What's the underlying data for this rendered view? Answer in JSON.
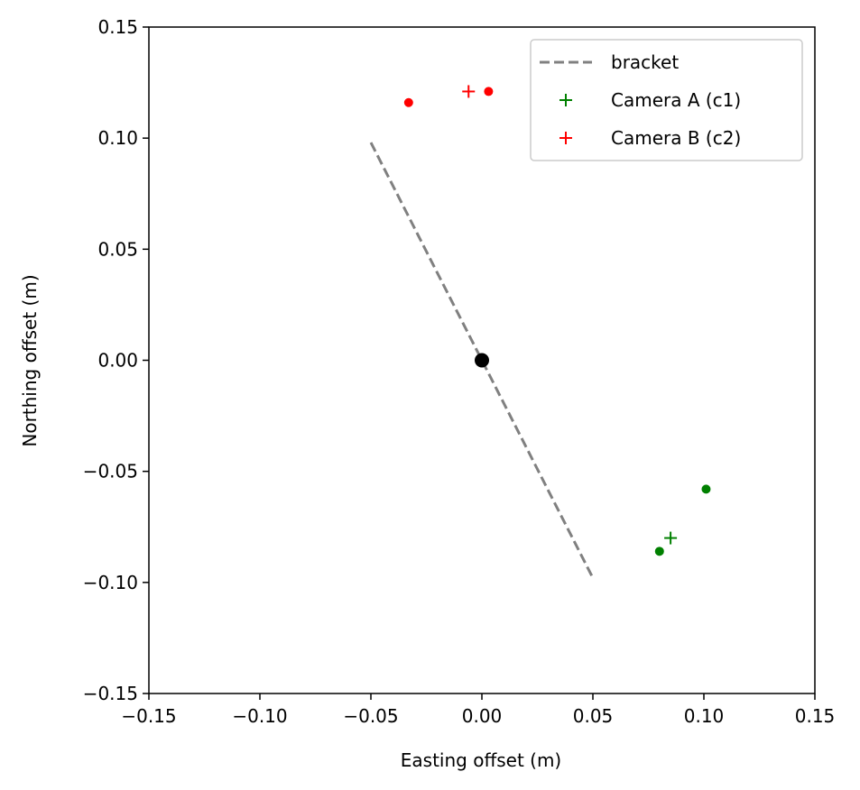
{
  "chart_data": {
    "type": "scatter",
    "xlabel": "Easting offset (m)",
    "ylabel": "Northing offset (m)",
    "xlim": [
      -0.15,
      0.15
    ],
    "ylim": [
      -0.15,
      0.15
    ],
    "xticks": [
      -0.15,
      -0.1,
      -0.05,
      0.0,
      0.05,
      0.1,
      0.15
    ],
    "yticks": [
      -0.15,
      -0.1,
      -0.05,
      0.0,
      0.05,
      0.1,
      0.15
    ],
    "xtick_labels": [
      "−0.15",
      "−0.10",
      "−0.05",
      "0.00",
      "0.05",
      "0.10",
      "0.15"
    ],
    "ytick_labels": [
      "−0.15",
      "−0.10",
      "−0.05",
      "0.00",
      "0.05",
      "0.10",
      "0.15"
    ],
    "grid": false,
    "legend_placement": "upper-right",
    "bracket": {
      "name": "bracket",
      "color": "#808080",
      "style": "dashed",
      "x": [
        -0.05,
        0.05
      ],
      "y": [
        0.098,
        -0.098
      ]
    },
    "center": {
      "x": 0.0,
      "y": 0.0,
      "color": "#000000"
    },
    "series": [
      {
        "name": "Camera A (c1)",
        "color": "#008000",
        "plus": [
          {
            "x": 0.085,
            "y": -0.08
          }
        ],
        "dots": [
          {
            "x": 0.08,
            "y": -0.086
          },
          {
            "x": 0.101,
            "y": -0.058
          }
        ]
      },
      {
        "name": "Camera B (c2)",
        "color": "#ff0000",
        "plus": [
          {
            "x": -0.006,
            "y": 0.121
          }
        ],
        "dots": [
          {
            "x": 0.003,
            "y": 0.121
          },
          {
            "x": -0.033,
            "y": 0.116
          }
        ]
      }
    ]
  }
}
